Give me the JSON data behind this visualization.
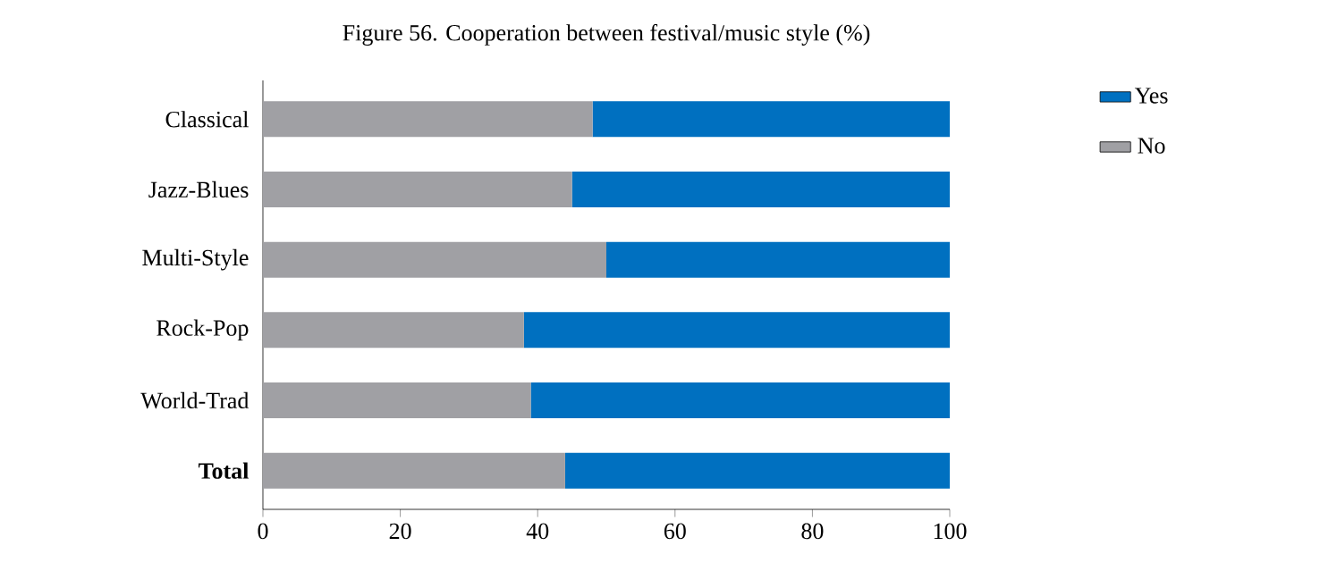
{
  "chart_data": {
    "type": "bar",
    "orientation": "horizontal",
    "stacked": true,
    "title": "Figure 56. Cooperation between festival/music style (%)",
    "categories": [
      "Classical",
      "Jazz-Blues",
      "Multi-Style",
      "Rock-Pop",
      "World-Trad",
      "**Total**"
    ],
    "series": [
      {
        "name": "No",
        "color": "#a0a0a4",
        "values": [
          48,
          45,
          50,
          38,
          39,
          44
        ]
      },
      {
        "name": "Yes",
        "color": "#0070c0",
        "values": [
          52,
          55,
          50,
          62,
          61,
          56
        ]
      }
    ],
    "xlim": [
      0,
      100
    ],
    "xticks": [
      0,
      20,
      40,
      60,
      80,
      100
    ],
    "legend": "top right",
    "grid": false
  }
}
